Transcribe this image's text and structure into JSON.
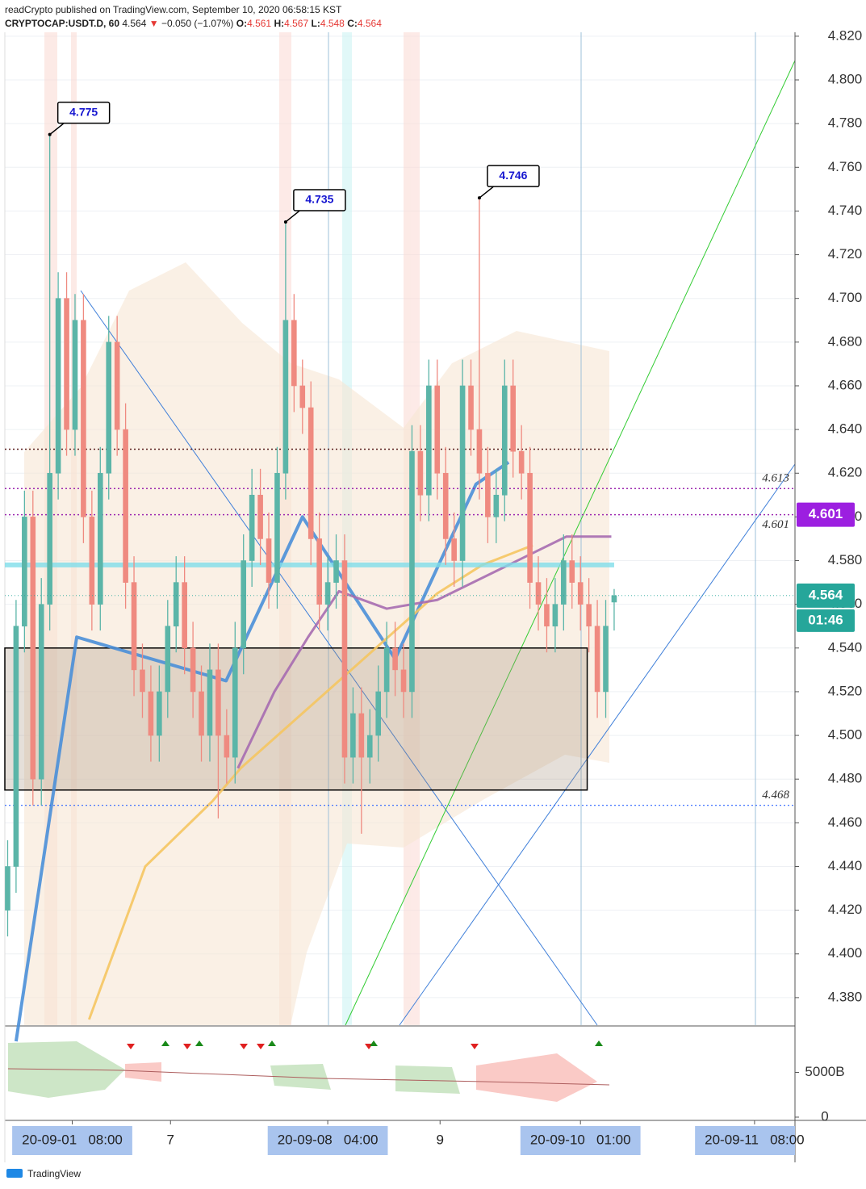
{
  "chart_data": {
    "type": "candlestick",
    "header": {
      "byline": "readCrypto published on TradingView.com, September 10, 2020 06:58:15 KST",
      "symbol": "CRYPTOCAP:USDT.D, 60",
      "price": 4.564,
      "change": "−0.050 (−1.07%)",
      "ohlc": [
        {
          "label": "O:",
          "value": 4.561
        },
        {
          "label": "H:",
          "value": 4.567
        },
        {
          "label": "L:",
          "value": 4.548
        },
        {
          "label": "C:",
          "value": 4.564
        }
      ]
    },
    "up_color": "#5bb5a8",
    "down_color": "#ef8a80",
    "x": [
      0.5,
      2,
      3.5,
      5,
      6.5,
      8,
      9.5,
      11,
      12.5,
      14,
      15.5,
      17,
      18.5,
      20,
      21.5,
      23,
      24.5,
      26,
      27.5,
      29,
      30.5,
      32,
      33.5,
      35,
      36.5,
      38,
      39.5,
      41,
      42.5,
      44,
      45.5,
      47,
      48.5,
      50,
      51.5,
      53,
      54.5,
      56,
      57.5,
      59,
      60.5,
      62,
      63.5,
      65,
      66.5,
      68,
      69.5,
      71,
      72.5,
      74,
      75.5,
      77,
      78.5,
      80,
      81.5,
      83,
      84.5,
      86,
      87.5,
      89,
      90.5,
      92,
      93.5,
      95,
      96.5,
      98,
      99.5,
      101,
      102.5,
      104,
      105.5,
      107,
      108.5
    ],
    "open": [
      4.42,
      4.44,
      4.55,
      4.6,
      4.48,
      4.56,
      4.62,
      4.7,
      4.64,
      4.69,
      4.6,
      4.56,
      4.62,
      4.68,
      4.64,
      4.57,
      4.53,
      4.52,
      4.5,
      4.52,
      4.55,
      4.57,
      4.54,
      4.52,
      4.5,
      4.53,
      4.5,
      4.49,
      4.54,
      4.58,
      4.61,
      4.59,
      4.57,
      4.62,
      4.69,
      4.66,
      4.65,
      4.59,
      4.56,
      4.57,
      4.58,
      4.49,
      4.51,
      4.49,
      4.5,
      4.52,
      4.54,
      4.53,
      4.52,
      4.63,
      4.61,
      4.66,
      4.62,
      4.59,
      4.58,
      4.66,
      4.64,
      4.62,
      4.6,
      4.61,
      4.66,
      4.63,
      4.62,
      4.57,
      4.56,
      4.55,
      4.56,
      4.58,
      4.57,
      4.56,
      4.55,
      4.52,
      4.561
    ],
    "high": [
      4.452,
      4.562,
      4.612,
      4.612,
      4.572,
      4.775,
      4.712,
      4.712,
      4.702,
      4.702,
      4.612,
      4.632,
      4.692,
      4.692,
      4.652,
      4.582,
      4.542,
      4.532,
      4.532,
      4.562,
      4.582,
      4.582,
      4.552,
      4.532,
      4.542,
      4.542,
      4.512,
      4.552,
      4.592,
      4.622,
      4.622,
      4.602,
      4.632,
      4.735,
      4.702,
      4.672,
      4.662,
      4.602,
      4.582,
      4.592,
      4.592,
      4.522,
      4.522,
      4.512,
      4.532,
      4.552,
      4.552,
      4.542,
      4.642,
      4.642,
      4.672,
      4.672,
      4.632,
      4.602,
      4.672,
      4.672,
      4.746,
      4.632,
      4.622,
      4.672,
      4.672,
      4.642,
      4.632,
      4.582,
      4.572,
      4.572,
      4.592,
      4.592,
      4.582,
      4.572,
      4.562,
      4.562,
      4.567
    ],
    "low": [
      4.408,
      4.428,
      4.538,
      4.468,
      4.468,
      4.548,
      4.608,
      4.628,
      4.628,
      4.588,
      4.548,
      4.548,
      4.608,
      4.628,
      4.558,
      4.518,
      4.508,
      4.488,
      4.488,
      4.508,
      4.538,
      4.528,
      4.508,
      4.488,
      4.488,
      4.462,
      4.478,
      4.478,
      4.528,
      4.568,
      4.578,
      4.558,
      4.558,
      4.608,
      4.648,
      4.638,
      4.578,
      4.548,
      4.548,
      4.558,
      4.478,
      4.478,
      4.455,
      4.478,
      4.488,
      4.508,
      4.518,
      4.508,
      4.508,
      4.598,
      4.598,
      4.608,
      4.578,
      4.568,
      4.568,
      4.628,
      4.608,
      4.588,
      4.588,
      4.598,
      4.618,
      4.608,
      4.558,
      4.548,
      4.538,
      4.538,
      4.548,
      4.558,
      4.548,
      4.538,
      4.508,
      4.508,
      4.548
    ],
    "close": [
      4.44,
      4.55,
      4.6,
      4.48,
      4.56,
      4.62,
      4.7,
      4.64,
      4.69,
      4.6,
      4.56,
      4.62,
      4.68,
      4.64,
      4.57,
      4.53,
      4.52,
      4.5,
      4.52,
      4.55,
      4.57,
      4.54,
      4.52,
      4.5,
      4.53,
      4.5,
      4.49,
      4.54,
      4.58,
      4.61,
      4.59,
      4.57,
      4.62,
      4.69,
      4.66,
      4.65,
      4.59,
      4.56,
      4.57,
      4.58,
      4.49,
      4.51,
      4.49,
      4.5,
      4.52,
      4.54,
      4.53,
      4.52,
      4.63,
      4.61,
      4.66,
      4.62,
      4.59,
      4.58,
      4.66,
      4.64,
      4.62,
      4.6,
      4.61,
      4.66,
      4.63,
      4.62,
      4.57,
      4.56,
      4.55,
      4.56,
      4.58,
      4.57,
      4.56,
      4.55,
      4.52,
      4.55,
      4.564
    ],
    "lines": [
      {
        "color": "#4a8fd8",
        "width": 4,
        "x": [
          2,
          12.8,
          39.4,
          53,
          69.5,
          83.9,
          89.7
        ],
        "values": [
          4.36,
          4.545,
          4.525,
          4.6,
          4.535,
          4.615,
          4.625
        ]
      },
      {
        "color": "#f5c560",
        "width": 3,
        "x": [
          15,
          25,
          37,
          42,
          77,
          85,
          94
        ],
        "values": [
          4.37,
          4.44,
          4.47,
          4.485,
          4.565,
          4.578,
          4.587
        ]
      },
      {
        "color": "#a66bb0",
        "width": 3,
        "x": [
          41.5,
          48,
          54,
          59.5,
          68,
          77,
          100,
          108
        ],
        "values": [
          4.485,
          4.52,
          4.545,
          4.566,
          4.558,
          4.562,
          4.591,
          4.591
        ]
      }
    ],
    "box": {
      "x": [
        0,
        103.7
      ],
      "values": [
        4.475,
        4.54
      ]
    },
    "levels": [
      {
        "value": 4.631,
        "color": "#5a1f1f",
        "width": 1.5,
        "labeled": false,
        "badge": false
      },
      {
        "value": 4.613,
        "color": "#9c27b0",
        "width": 1.5,
        "labeled": true,
        "badge": false
      },
      {
        "value": 4.601,
        "color": "#9c27b0",
        "width": 1.5,
        "labeled": true,
        "badge": true
      },
      {
        "value": 4.578,
        "color": "#80deea",
        "width": 6,
        "labeled": false,
        "badge": false
      },
      {
        "value": 4.468,
        "color": "#2962ff",
        "width": 1.2,
        "labeled": true,
        "badge": false
      }
    ],
    "callouts": [
      {
        "x": 8,
        "value": 4.775
      },
      {
        "x": 50,
        "value": 4.735
      },
      {
        "x": 84.5,
        "value": 4.746
      }
    ],
    "last_price": 4.564,
    "countdown": "01:46",
    "xlim": [
      0,
      140.7
    ],
    "ylim": [
      4.3674,
      4.8218
    ],
    "yticks": [
      {
        "value": 4.38,
        "label": "4.380"
      },
      {
        "value": 4.4,
        "label": "4.400"
      },
      {
        "value": 4.42,
        "label": "4.420"
      },
      {
        "value": 4.44,
        "label": "4.440"
      },
      {
        "value": 4.46,
        "label": "4.460"
      },
      {
        "value": 4.48,
        "label": "4.480"
      },
      {
        "value": 4.5,
        "label": "4.500"
      },
      {
        "value": 4.52,
        "label": "4.520"
      },
      {
        "value": 4.54,
        "label": "4.540"
      },
      {
        "value": 4.56,
        "label": "4.560"
      },
      {
        "value": 4.58,
        "label": "4.580"
      },
      {
        "value": 4.6,
        "label": "4.600"
      },
      {
        "value": 4.62,
        "label": "4.620"
      },
      {
        "value": 4.64,
        "label": "4.640"
      },
      {
        "value": 4.66,
        "label": "4.660"
      },
      {
        "value": 4.68,
        "label": "4.680"
      },
      {
        "value": 4.7,
        "label": "4.700"
      },
      {
        "value": 4.72,
        "label": "4.720"
      },
      {
        "value": 4.74,
        "label": "4.740"
      },
      {
        "value": 4.76,
        "label": "4.760"
      },
      {
        "value": 4.78,
        "label": "4.780"
      },
      {
        "value": 4.8,
        "label": "4.800"
      },
      {
        "value": 4.82,
        "label": "4.820"
      }
    ],
    "xticks": [
      {
        "value": 12,
        "label": "20-09-01   08:00"
      },
      {
        "value": 29.5,
        "label": "7"
      },
      {
        "value": 57.5,
        "label": "20-09-08   04:00"
      },
      {
        "value": 77.5,
        "label": "9"
      },
      {
        "value": 102.5,
        "label": "20-09-10   01:00"
      },
      {
        "value": 133.5,
        "label": "20-09-11   08:00"
      }
    ],
    "xtick_boxes": [
      true,
      false,
      true,
      false,
      true,
      true
    ],
    "grid": true,
    "volume_pane": {
      "ylim": [
        -182,
        10090
      ],
      "yticks": [
        {
          "value": 5000,
          "label": "5000B"
        },
        0
      ]
    },
    "footer": "TradingView"
  }
}
